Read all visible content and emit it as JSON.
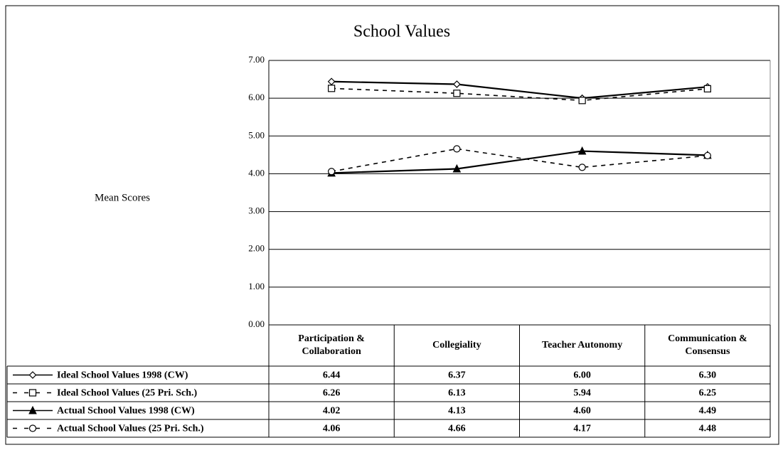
{
  "chart_data": {
    "type": "line",
    "title": "School Values",
    "y_label": "Mean Scores",
    "categories": [
      "Participation & Collaboration",
      "Collegiality",
      "Teacher Autonomy",
      "Communication & Consensus"
    ],
    "ylim": [
      0,
      7
    ],
    "yticks": [
      {
        "value": 0,
        "label": "0.00"
      },
      {
        "value": 1,
        "label": "1.00"
      },
      {
        "value": 2,
        "label": "2.00"
      },
      {
        "value": 3,
        "label": "3.00"
      },
      {
        "value": 4,
        "label": "4.00"
      },
      {
        "value": 5,
        "label": "5.00"
      },
      {
        "value": 6,
        "label": "6.00"
      },
      {
        "value": 7,
        "label": "7.00"
      }
    ],
    "grid": true,
    "series": [
      {
        "name": "Ideal School Values 1998 (CW)",
        "color": "#000000",
        "dashed": false,
        "marker": "diamond",
        "values": [
          6.44,
          6.37,
          6.0,
          6.3
        ],
        "value_labels": [
          "6.44",
          "6.37",
          "6.00",
          "6.30"
        ]
      },
      {
        "name": "Ideal School Values (25 Pri. Sch.)",
        "color": "#000000",
        "dashed": true,
        "marker": "square",
        "values": [
          6.26,
          6.13,
          5.94,
          6.25
        ],
        "value_labels": [
          "6.26",
          "6.13",
          "5.94",
          "6.25"
        ]
      },
      {
        "name": "Actual School Values 1998 (CW)",
        "color": "#000000",
        "dashed": false,
        "marker": "triangle",
        "values": [
          4.02,
          4.13,
          4.6,
          4.49
        ],
        "value_labels": [
          "4.02",
          "4.13",
          "4.60",
          "4.49"
        ]
      },
      {
        "name": "Actual School Values (25 Pri. Sch.)",
        "color": "#000000",
        "dashed": true,
        "marker": "circle",
        "values": [
          4.06,
          4.66,
          4.17,
          4.48
        ],
        "value_labels": [
          "4.06",
          "4.66",
          "4.17",
          "4.48"
        ]
      }
    ]
  }
}
